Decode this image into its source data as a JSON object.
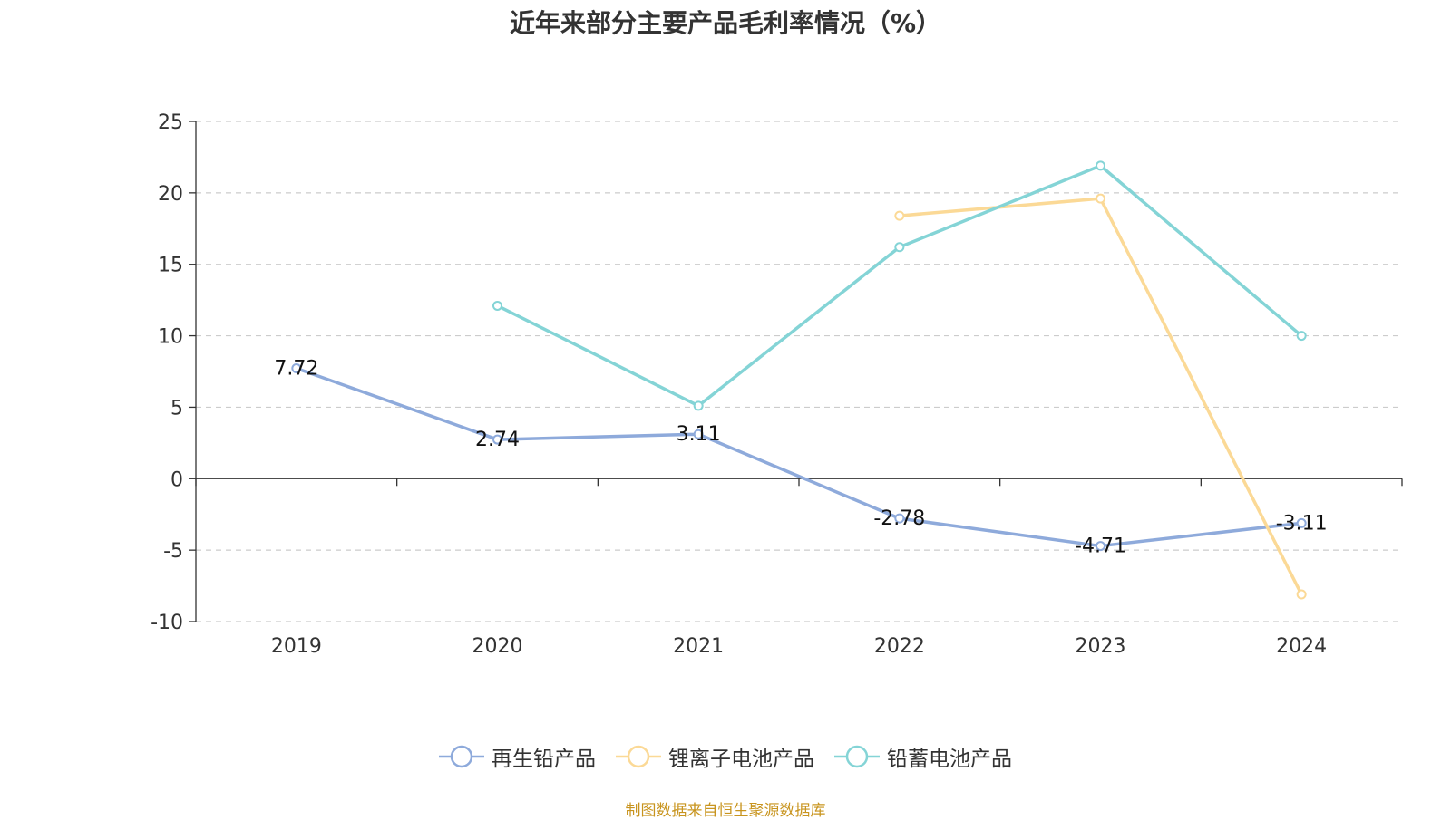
{
  "colors": {
    "axis": "#333333",
    "grid": "#cccccc",
    "text": "#333333",
    "source": "#c8941e"
  },
  "chart_data": {
    "type": "line",
    "title": "近年来部分主要产品毛利率情况（%）",
    "categories": [
      "2019",
      "2020",
      "2021",
      "2022",
      "2023",
      "2024"
    ],
    "ylim": [
      -10,
      25
    ],
    "yticks": [
      -10,
      -5,
      0,
      5,
      10,
      15,
      20,
      25
    ],
    "grid": true,
    "legend_position": "bottom",
    "series": [
      {
        "name": "再生铅产品",
        "color": "#8eaadb",
        "values": [
          7.72,
          2.74,
          3.11,
          -2.78,
          -4.71,
          -3.11
        ],
        "show_labels": true
      },
      {
        "name": "锂离子电池产品",
        "color": "#fbd996",
        "values": [
          null,
          null,
          null,
          18.4,
          19.6,
          -8.1
        ],
        "show_labels": false
      },
      {
        "name": "铅蓄电池产品",
        "color": "#84d4d6",
        "values": [
          null,
          12.1,
          5.1,
          16.2,
          21.9,
          10.0
        ],
        "show_labels": false
      }
    ]
  },
  "source_note": "制图数据来自恒生聚源数据库"
}
